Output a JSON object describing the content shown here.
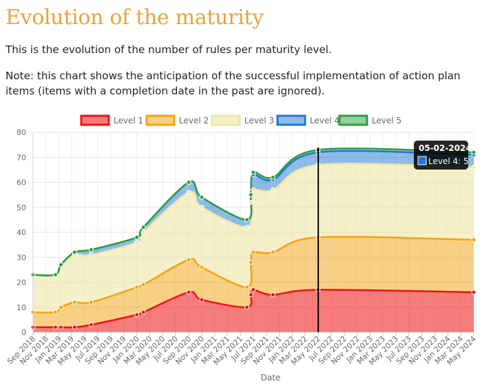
{
  "page": {
    "title": "Evolution of the maturity",
    "paragraph1": "This is the evolution of the number of rules per maturity level.",
    "paragraph2": "Note: this chart shows the anticipation of the successful implementation of action plan items (items with a completion date in the past are ignored)."
  },
  "colors": {
    "title": "#e8a33a",
    "level1": "#ee1111",
    "level2": "#f2a20c",
    "level3": "#efe6a6",
    "level4": "#1f77d4",
    "level5": "#2e9d3f"
  },
  "chart_data": {
    "type": "area",
    "stacked": true,
    "xlabel": "Date",
    "ylabel": "",
    "ylim": [
      0,
      80
    ],
    "y_ticks": [
      0,
      10,
      20,
      30,
      40,
      50,
      60,
      70,
      80
    ],
    "x_tick_labels": [
      "Sep 2018",
      "Nov 2018",
      "Jan 2019",
      "Mar 2019",
      "May 2019",
      "Jul 2019",
      "Sep 2019",
      "Nov 2019",
      "Jan 2020",
      "Mar 2020",
      "May 2020",
      "Jul 2020",
      "Sep 2020",
      "Nov 2020",
      "Jan 2021",
      "Mar 2021",
      "May 2021",
      "Jul 2021",
      "Sep 2021",
      "Nov 2021",
      "Jan 2022",
      "Mar 2022",
      "May 2022",
      "Jul 2022",
      "Sep 2022",
      "Nov 2022",
      "Jan 2023",
      "Mar 2023",
      "May 2023",
      "Jul 2023",
      "Sep 2023",
      "Nov 2023",
      "Jan 2024",
      "Mar 2024",
      "May 2024"
    ],
    "x_range": [
      "2018-09-01",
      "2024-05-01"
    ],
    "grid": true,
    "legend_position": "top",
    "dates": [
      "2018-09-01",
      "2018-12-15",
      "2019-01-10",
      "2019-03-15",
      "2019-06-01",
      "2020-01-01",
      "2020-02-01",
      "2020-09-01",
      "2020-11-01",
      "2021-06-01",
      "2021-06-20",
      "2021-07-01",
      "2021-10-01",
      "2022-05-01",
      "2024-05-01"
    ],
    "series": [
      {
        "name": "Level 1",
        "values": [
          2,
          2,
          2,
          2,
          3,
          7,
          8,
          16,
          13,
          10,
          15,
          17,
          15,
          17,
          16
        ]
      },
      {
        "name": "Level 2",
        "values": [
          6,
          6,
          8,
          10,
          9,
          11,
          11,
          13,
          13,
          8,
          13,
          15,
          17,
          21,
          21
        ]
      },
      {
        "name": "Level 3",
        "values": [
          15,
          15,
          17,
          19,
          19,
          18,
          21,
          27,
          24,
          24,
          24,
          25,
          25,
          29,
          29
        ]
      },
      {
        "name": "Level 4",
        "values": [
          0,
          0,
          0,
          1,
          2,
          2,
          2,
          4,
          4,
          3,
          3,
          6,
          4,
          5,
          5
        ]
      },
      {
        "name": "Level 5",
        "values": [
          0,
          0,
          0,
          0,
          0,
          0,
          0,
          0,
          0,
          0,
          0,
          1,
          1,
          1,
          1
        ]
      }
    ],
    "crosshair_date": "2022-05-02",
    "tooltip": {
      "title": "05-02-2024",
      "label": "Level 4: 5"
    }
  }
}
